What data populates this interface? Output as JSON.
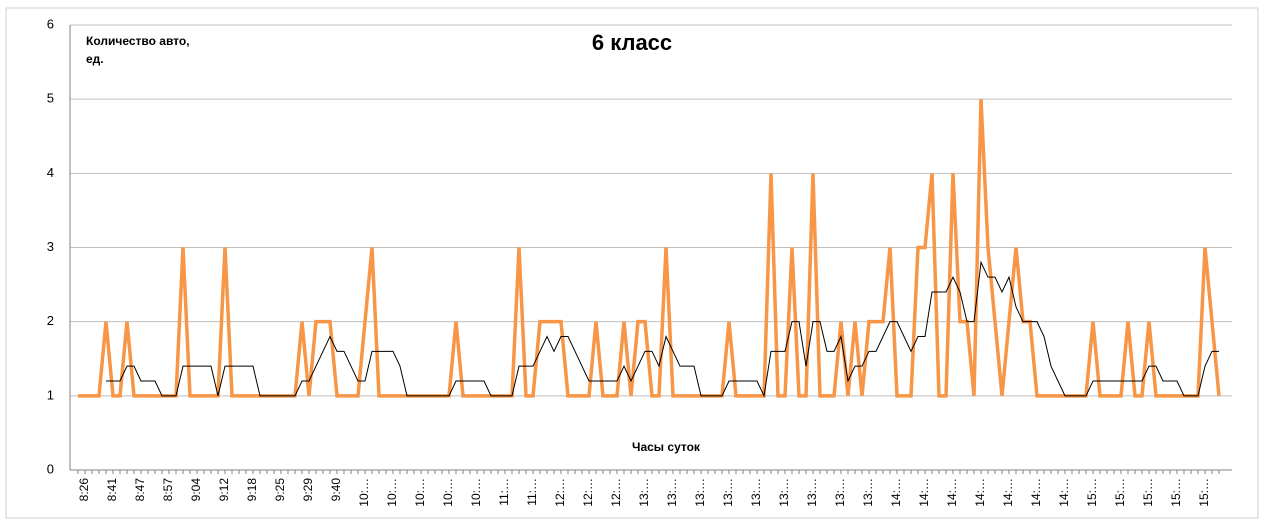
{
  "chart_data": {
    "type": "line",
    "title": "6 класс",
    "ylabel": [
      "Количество авто,",
      "ед."
    ],
    "xlabel": "Часы суток",
    "ylim": [
      0,
      6
    ],
    "yticks": [
      0,
      1,
      2,
      3,
      4,
      5,
      6
    ],
    "grid": true,
    "categories": [
      null,
      "8:26",
      null,
      null,
      null,
      "8:41",
      null,
      null,
      null,
      "8:47",
      null,
      null,
      null,
      "8:57",
      null,
      null,
      null,
      "9:04",
      null,
      null,
      null,
      "9:12",
      null,
      null,
      null,
      "9:18",
      null,
      null,
      null,
      "9:25",
      null,
      null,
      null,
      "9:29",
      null,
      null,
      null,
      "9:40",
      null,
      null,
      null,
      "10:…",
      null,
      null,
      null,
      "10:…",
      null,
      null,
      null,
      "10:…",
      null,
      null,
      null,
      "10:…",
      null,
      null,
      null,
      "10:…",
      null,
      null,
      null,
      "11:…",
      null,
      null,
      null,
      "11:…",
      null,
      null,
      null,
      "12:…",
      null,
      null,
      null,
      "12:…",
      null,
      null,
      null,
      "12:…",
      null,
      null,
      null,
      "13:…",
      null,
      null,
      null,
      "13:…",
      null,
      null,
      null,
      "13:…",
      null,
      null,
      null,
      "13:…",
      null,
      null,
      null,
      "13:…",
      null,
      null,
      null,
      "13:…",
      null,
      null,
      null,
      "13:…",
      null,
      null,
      null,
      "13:…",
      null,
      null,
      null,
      "13:…",
      null,
      null,
      null,
      "14:…",
      null,
      null,
      null,
      "14:…",
      null,
      null,
      null,
      "14:…",
      null,
      null,
      null,
      "14:…",
      null,
      null,
      null,
      "14:…",
      null,
      null,
      null,
      "14:…",
      null,
      null,
      null,
      "14:…",
      null,
      null,
      null,
      "15:…",
      null,
      null,
      null,
      "15:…",
      null,
      null,
      null,
      "15:…",
      null,
      null,
      null,
      "15:…",
      null,
      null,
      null,
      "15:…",
      null,
      null
    ],
    "series": [
      {
        "color": "#f79646",
        "width": 3.5,
        "values": [
          1,
          1,
          1,
          1,
          2,
          1,
          1,
          2,
          1,
          1,
          1,
          1,
          1,
          1,
          1,
          3,
          1,
          1,
          1,
          1,
          1,
          3,
          1,
          1,
          1,
          1,
          1,
          1,
          1,
          1,
          1,
          1,
          2,
          1,
          2,
          2,
          2,
          1,
          1,
          1,
          1,
          2,
          3,
          1,
          1,
          1,
          1,
          1,
          1,
          1,
          1,
          1,
          1,
          1,
          2,
          1,
          1,
          1,
          1,
          1,
          1,
          1,
          1,
          3,
          1,
          1,
          2,
          2,
          2,
          2,
          1,
          1,
          1,
          1,
          2,
          1,
          1,
          1,
          2,
          1,
          2,
          2,
          1,
          1,
          3,
          1,
          1,
          1,
          1,
          1,
          1,
          1,
          1,
          2,
          1,
          1,
          1,
          1,
          1,
          4,
          1,
          1,
          3,
          1,
          1,
          4,
          1,
          1,
          1,
          2,
          1,
          2,
          1,
          2,
          2,
          2,
          3,
          1,
          1,
          1,
          3,
          3,
          4,
          1,
          1,
          4,
          2,
          2,
          1,
          5,
          3,
          2,
          1,
          2,
          3,
          2,
          2,
          1,
          1,
          1,
          1,
          1,
          1,
          1,
          1,
          2,
          1,
          1,
          1,
          1,
          2,
          1,
          1,
          2,
          1,
          1,
          1,
          1,
          1,
          1,
          1,
          3,
          2,
          1
        ]
      },
      {
        "color": "#000000",
        "width": 1,
        "values": [
          null,
          null,
          null,
          null,
          1.2,
          1.2,
          1.2,
          1.4,
          1.4,
          1.2,
          1.2,
          1.2,
          1,
          1,
          1,
          1.4,
          1.4,
          1.4,
          1.4,
          1.4,
          1,
          1.4,
          1.4,
          1.4,
          1.4,
          1.4,
          1,
          1,
          1,
          1,
          1,
          1,
          1.2,
          1.2,
          1.4,
          1.6,
          1.8,
          1.6,
          1.6,
          1.4,
          1.2,
          1.2,
          1.6,
          1.6,
          1.6,
          1.6,
          1.4,
          1,
          1,
          1,
          1,
          1,
          1,
          1,
          1.2,
          1.2,
          1.2,
          1.2,
          1.2,
          1,
          1,
          1,
          1,
          1.4,
          1.4,
          1.4,
          1.6,
          1.8,
          1.6,
          1.8,
          1.8,
          1.6,
          1.4,
          1.2,
          1.2,
          1.2,
          1.2,
          1.2,
          1.4,
          1.2,
          1.4,
          1.6,
          1.6,
          1.4,
          1.8,
          1.6,
          1.4,
          1.4,
          1.4,
          1,
          1,
          1,
          1,
          1.2,
          1.2,
          1.2,
          1.2,
          1.2,
          1,
          1.6,
          1.6,
          1.6,
          2,
          2,
          1.4,
          2,
          2,
          1.6,
          1.6,
          1.8,
          1.2,
          1.4,
          1.4,
          1.6,
          1.6,
          1.8,
          2,
          2,
          1.8,
          1.6,
          1.8,
          1.8,
          2.4,
          2.4,
          2.4,
          2.6,
          2.4,
          2,
          2,
          2.8,
          2.6,
          2.6,
          2.4,
          2.6,
          2.2,
          2,
          2,
          2,
          1.8,
          1.4,
          1.2,
          1,
          1,
          1,
          1,
          1.2,
          1.2,
          1.2,
          1.2,
          1.2,
          1.2,
          1.2,
          1.2,
          1.4,
          1.4,
          1.2,
          1.2,
          1.2,
          1,
          1,
          1,
          1.4,
          1.6,
          1.6
        ]
      }
    ]
  }
}
